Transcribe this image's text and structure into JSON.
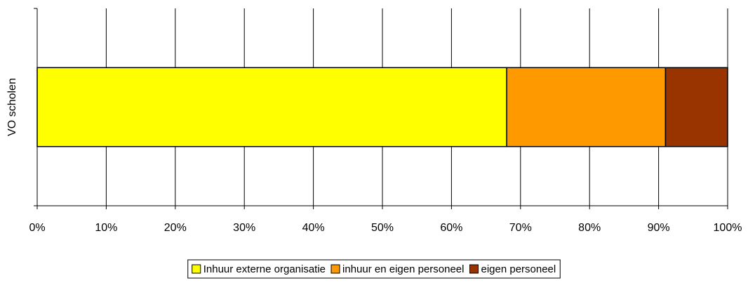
{
  "chart_data": {
    "type": "bar",
    "orientation": "horizontal",
    "stacked": true,
    "categories": [
      "VO scholen"
    ],
    "series": [
      {
        "name": "Inhuur externe organisatie",
        "color": "#ffff00",
        "values": [
          68
        ]
      },
      {
        "name": "inhuur  en eigen personeel",
        "color": "#ff9900",
        "values": [
          23
        ]
      },
      {
        "name": "eigen personeel",
        "color": "#993300",
        "values": [
          9
        ]
      }
    ],
    "xlim": [
      0,
      100
    ],
    "xticks": [
      {
        "value": 0,
        "label": "0%"
      },
      {
        "value": 10,
        "label": "10%"
      },
      {
        "value": 20,
        "label": "20%"
      },
      {
        "value": 30,
        "label": "30%"
      },
      {
        "value": 40,
        "label": "40%"
      },
      {
        "value": 50,
        "label": "50%"
      },
      {
        "value": 60,
        "label": "60%"
      },
      {
        "value": 70,
        "label": "70%"
      },
      {
        "value": 80,
        "label": "80%"
      },
      {
        "value": 90,
        "label": "90%"
      },
      {
        "value": 100,
        "label": "100%"
      }
    ],
    "grid": true,
    "legend": "bottom"
  }
}
